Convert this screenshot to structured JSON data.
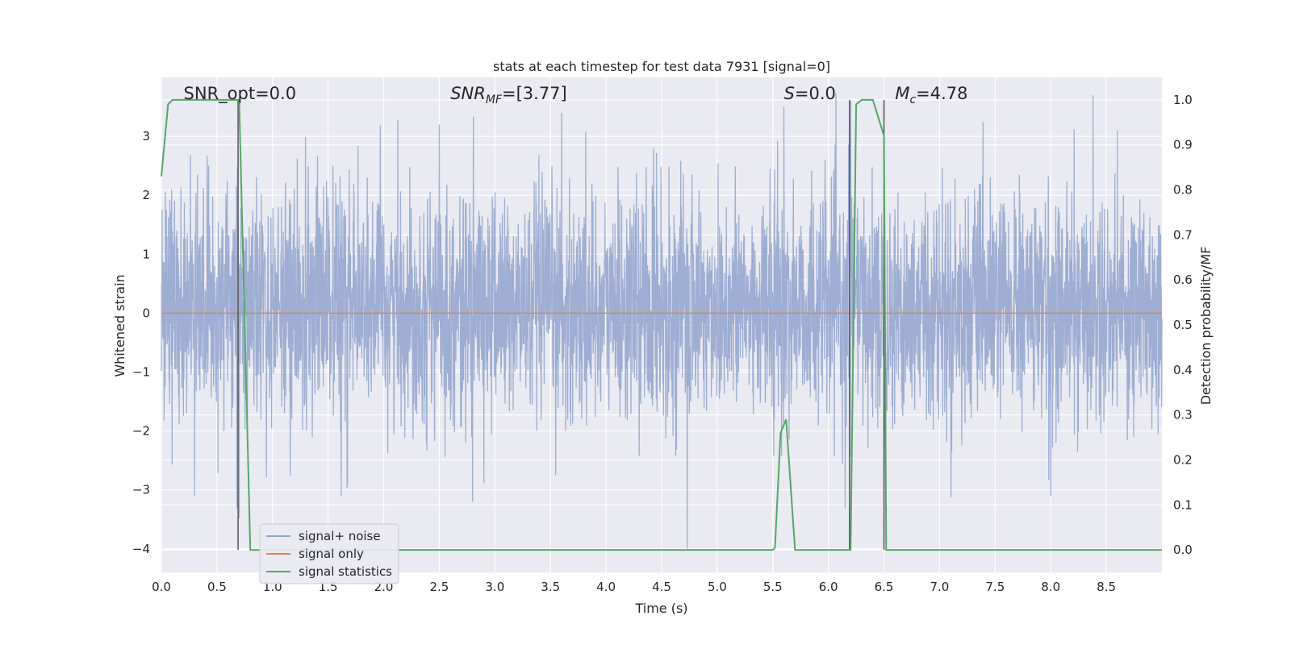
{
  "chart_data": {
    "type": "line",
    "title": "stats at each timestep for test data 7931 [signal=0]",
    "xlabel": "Time (s)",
    "ylabel": "Whitened strain",
    "ylabel_right": "Detection probability/MF",
    "xlim": [
      0.0,
      9.0
    ],
    "ylim": [
      -4.4,
      4.0
    ],
    "ylim_right": [
      -0.05,
      1.05
    ],
    "x_ticks": [
      "0.0",
      "0.5",
      "1.0",
      "1.5",
      "2.0",
      "2.5",
      "3.0",
      "3.5",
      "4.0",
      "4.5",
      "5.0",
      "5.5",
      "6.0",
      "6.5",
      "7.0",
      "7.5",
      "8.0",
      "8.5"
    ],
    "y_ticks": [
      "3",
      "2",
      "1",
      "0",
      "−1",
      "−2",
      "−3",
      "−4"
    ],
    "y_ticks_right": [
      "1.0",
      "0.9",
      "0.8",
      "0.7",
      "0.6",
      "0.5",
      "0.4",
      "0.3",
      "0.2",
      "0.1",
      "0.0"
    ],
    "grid": true,
    "legend_placement": "lower-left",
    "series": [
      {
        "name": "signal+ noise",
        "axis": "left",
        "color": "#8fa3cc",
        "description_values": {
          "typical_range": [
            -1.8,
            2.0
          ],
          "peaks": [
            [
              0.68,
              3.6
            ],
            [
              2.5,
              3.2
            ],
            [
              3.6,
              3.4
            ],
            [
              5.6,
              3.5
            ],
            [
              6.2,
              3.6
            ],
            [
              8.6,
              3.1
            ]
          ],
          "troughs": [
            [
              0.3,
              -3.1
            ],
            [
              0.68,
              -3.3
            ],
            [
              2.8,
              -3.2
            ],
            [
              4.73,
              -4.0
            ],
            [
              6.15,
              -3.3
            ],
            [
              8.0,
              -3.1
            ]
          ]
        }
      },
      {
        "name": "signal only",
        "axis": "left",
        "color": "#dd8452",
        "x": [
          0.0,
          9.0
        ],
        "y": [
          0.0,
          0.0
        ]
      },
      {
        "name": "signal statistics",
        "axis": "right",
        "color": "#55a868",
        "x": [
          0.0,
          0.06,
          0.1,
          0.68,
          0.7,
          0.8,
          0.81,
          5.5,
          5.52,
          5.57,
          5.62,
          5.7,
          5.72,
          6.15,
          6.18,
          6.2,
          6.25,
          6.3,
          6.4,
          6.5,
          6.52,
          6.6,
          9.0
        ],
        "y": [
          0.83,
          0.99,
          1.0,
          1.0,
          1.0,
          0.0,
          0.0,
          0.0,
          0.005,
          0.26,
          0.29,
          0.0,
          0.0,
          0.0,
          0.0,
          0.0,
          0.99,
          1.0,
          1.0,
          0.92,
          0.0,
          0.0,
          0.0
        ]
      }
    ],
    "vlines": [
      0.69,
      6.19,
      6.5
    ],
    "annotations": [
      {
        "text": "SNR_opt=0.0",
        "x": 0.2
      },
      {
        "text_main": "SNR",
        "text_sub": "MF",
        "text_tail": "=[3.77]",
        "x": 2.6
      },
      {
        "text_main": "S",
        "text_tail": "=0.0",
        "x": 5.6
      },
      {
        "text_main": "M",
        "text_sub": "c",
        "text_tail": "=4.78",
        "x": 6.6
      }
    ]
  }
}
